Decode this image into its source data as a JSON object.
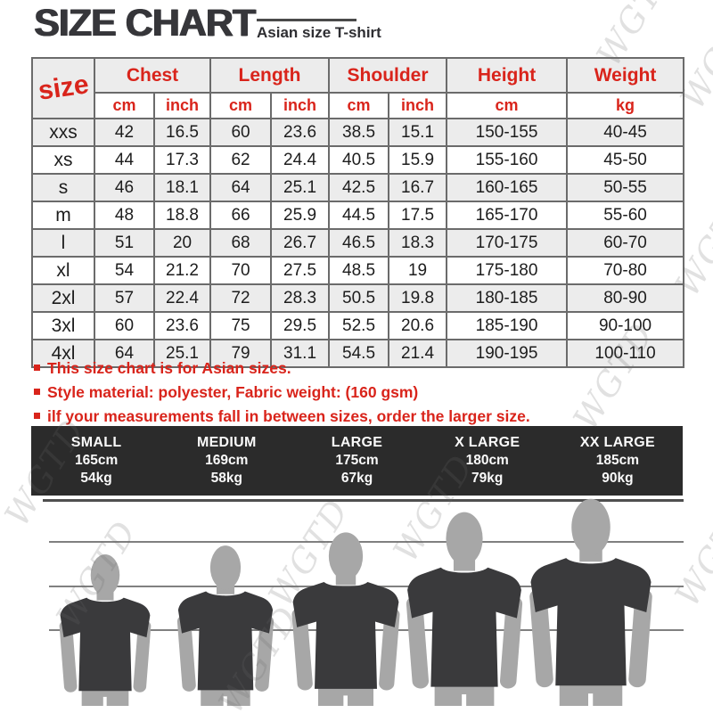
{
  "title": "SIZE CHART",
  "subtitle": "Asian size T-shirt",
  "watermark": {
    "text": "WGTD"
  },
  "table": {
    "size_header": "size",
    "columns": [
      {
        "label": "Chest",
        "units": [
          "cm",
          "inch"
        ]
      },
      {
        "label": "Length",
        "units": [
          "cm",
          "inch"
        ]
      },
      {
        "label": "Shoulder",
        "units": [
          "cm",
          "inch"
        ]
      },
      {
        "label": "Height",
        "units": [
          "cm"
        ]
      },
      {
        "label": "Weight",
        "units": [
          "kg"
        ]
      }
    ],
    "rows": [
      [
        "xxs",
        "42",
        "16.5",
        "60",
        "23.6",
        "38.5",
        "15.1",
        "150-155",
        "40-45"
      ],
      [
        "xs",
        "44",
        "17.3",
        "62",
        "24.4",
        "40.5",
        "15.9",
        "155-160",
        "45-50"
      ],
      [
        "s",
        "46",
        "18.1",
        "64",
        "25.1",
        "42.5",
        "16.7",
        "160-165",
        "50-55"
      ],
      [
        "m",
        "48",
        "18.8",
        "66",
        "25.9",
        "44.5",
        "17.5",
        "165-170",
        "55-60"
      ],
      [
        "l",
        "51",
        "20",
        "68",
        "26.7",
        "46.5",
        "18.3",
        "170-175",
        "60-70"
      ],
      [
        "xl",
        "54",
        "21.2",
        "70",
        "27.5",
        "48.5",
        "19",
        "175-180",
        "70-80"
      ],
      [
        "2xl",
        "57",
        "22.4",
        "72",
        "28.3",
        "50.5",
        "19.8",
        "180-185",
        "80-90"
      ],
      [
        "3xl",
        "60",
        "23.6",
        "75",
        "29.5",
        "52.5",
        "20.6",
        "185-190",
        "90-100"
      ],
      [
        "4xl",
        "64",
        "25.1",
        "79",
        "31.1",
        "54.5",
        "21.4",
        "190-195",
        "100-110"
      ]
    ]
  },
  "notes": [
    "This size chart is for Asian sizes.",
    "Style material: polyester, Fabric weight:  (160 gsm)",
    "ilf your measurements fall in between sizes, order the larger size."
  ],
  "banner": {
    "columns": [
      {
        "name": "SMALL",
        "height": "165cm",
        "weight": "54kg"
      },
      {
        "name": "MEDIUM",
        "height": "169cm",
        "weight": "58kg"
      },
      {
        "name": "LARGE",
        "height": "175cm",
        "weight": "67kg"
      },
      {
        "name": "X LARGE",
        "height": "180cm",
        "weight": "79kg"
      },
      {
        "name": "XX LARGE",
        "height": "185cm",
        "weight": "90kg"
      }
    ]
  },
  "colors": {
    "accent_red": "#d9241b",
    "title_dark": "#36363a",
    "banner_bg": "#2b2b2b",
    "shirt": "#3a3a3c",
    "skin": "#a7a7a7"
  }
}
